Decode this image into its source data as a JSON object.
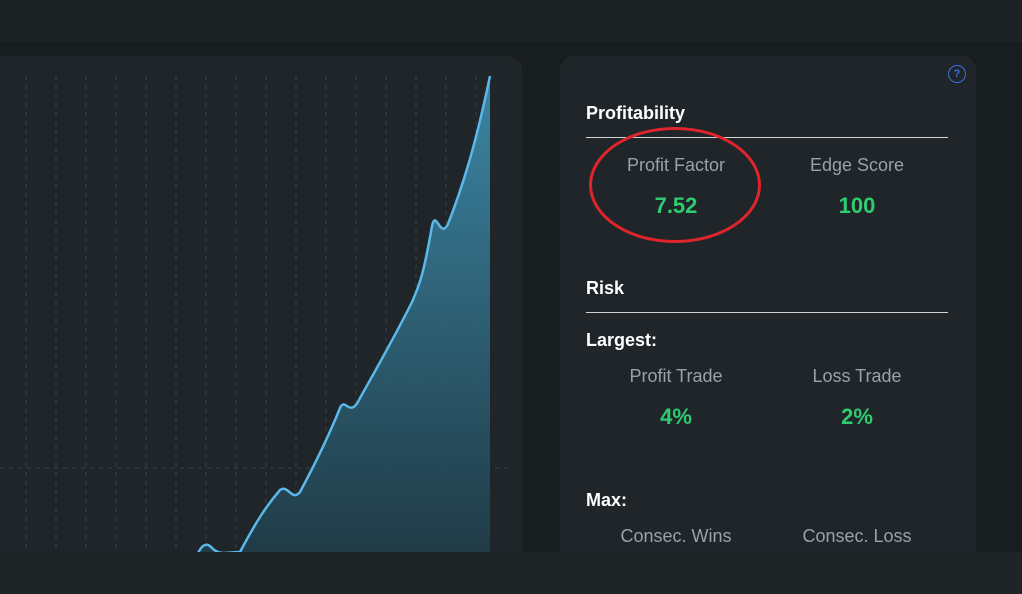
{
  "colors": {
    "accent_green": "#2ecc71",
    "chart_line": "#5ab9ea",
    "highlight": "#e0242c",
    "help_icon": "#3b6fe0"
  },
  "help": {
    "icon": "question-circle-icon",
    "glyph": "?"
  },
  "profitability": {
    "title": "Profitability",
    "metrics": [
      {
        "label": "Profit Factor",
        "value": "7.52"
      },
      {
        "label": "Edge Score",
        "value": "100"
      }
    ]
  },
  "risk": {
    "title": "Risk",
    "largest": {
      "title": "Largest:",
      "metrics": [
        {
          "label": "Profit Trade",
          "value": "4%"
        },
        {
          "label": "Loss Trade",
          "value": "2%"
        }
      ]
    },
    "max": {
      "title": "Max:",
      "metrics": [
        {
          "label": "Consec. Wins"
        },
        {
          "label": "Consec. Loss"
        }
      ]
    }
  }
}
